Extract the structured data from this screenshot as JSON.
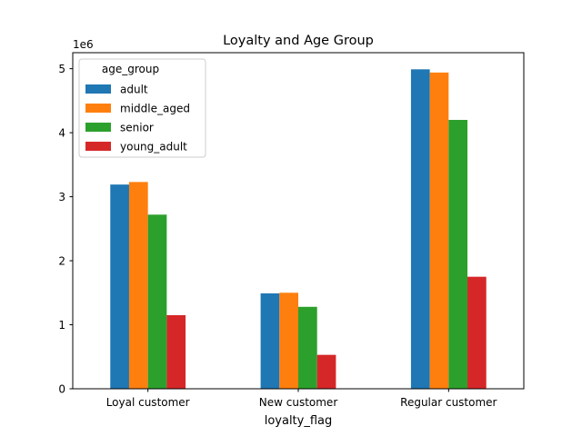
{
  "chart_data": {
    "type": "bar",
    "title": "Loyalty and Age Group",
    "xlabel": "loyalty_flag",
    "ylabel": "",
    "y_scale_label": "1e6",
    "y_multiplier": 1000000,
    "ylim": [
      0,
      5.25
    ],
    "yticks": [
      0,
      1,
      2,
      3,
      4,
      5
    ],
    "ytick_labels": [
      "0",
      "1",
      "2",
      "3",
      "4",
      "5"
    ],
    "grid": false,
    "categories": [
      "Loyal customer",
      "New customer",
      "Regular customer"
    ],
    "legend": {
      "title": "age_group",
      "location": "upper-left"
    },
    "series": [
      {
        "name": "adult",
        "color": "#1f77b4",
        "values": [
          3.19,
          1.49,
          4.99
        ]
      },
      {
        "name": "middle_aged",
        "color": "#ff7f0e",
        "values": [
          3.23,
          1.5,
          4.94
        ]
      },
      {
        "name": "senior",
        "color": "#2ca02c",
        "values": [
          2.72,
          1.28,
          4.2
        ]
      },
      {
        "name": "young_adult",
        "color": "#d62728",
        "values": [
          1.15,
          0.53,
          1.75
        ]
      }
    ]
  }
}
